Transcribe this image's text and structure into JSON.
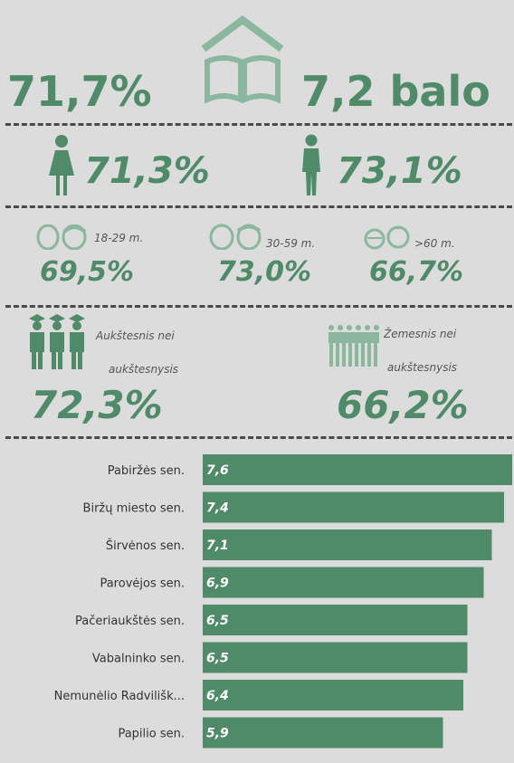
{
  "colors": {
    "accent": "#4f8a69",
    "background": "#dcdcdc",
    "bar": "#4f8a69",
    "bar_text": "#ffffff",
    "label": "#333333"
  },
  "top": {
    "left_value": "71,7%",
    "right_value": "7,2 balo",
    "icon": "school-book-icon"
  },
  "gender": {
    "female": {
      "value": "71,3%",
      "icon": "woman-icon"
    },
    "male": {
      "value": "73,1%",
      "icon": "man-icon"
    }
  },
  "age": [
    {
      "label": "18-29 m.",
      "value": "69,5%",
      "icon": "young-faces-icon"
    },
    {
      "label": "30-59 m.",
      "value": "73,0%",
      "icon": "adult-faces-icon"
    },
    {
      "label": ">60 m.",
      "value": "66,7%",
      "icon": "elderly-faces-icon"
    }
  ],
  "education": [
    {
      "label_line1": "Aukštesnis nei",
      "label_line2": "aukštesnysis",
      "value": "72,3%",
      "icon": "graduates-icon"
    },
    {
      "label_line1": "Žemesnis nei",
      "label_line2": "aukštesnysis",
      "value": "66,2%",
      "icon": "crowd-icon"
    }
  ],
  "chart_data": {
    "type": "bar",
    "orientation": "horizontal",
    "categories": [
      "Pabiržės sen.",
      "Biržų miesto sen.",
      "Širvėnos sen.",
      "Parovėjos sen.",
      "Pačeriaukštės sen.",
      "Vabalninko sen.",
      "Nemunėlio Radvilišk...",
      "Papilio sen."
    ],
    "values": [
      7.6,
      7.4,
      7.1,
      6.9,
      6.5,
      6.5,
      6.4,
      5.9
    ],
    "value_labels": [
      "7,6",
      "7,4",
      "7,1",
      "6,9",
      "6,5",
      "6,5",
      "6,4",
      "5,9"
    ],
    "xlim": [
      0,
      7.6
    ]
  }
}
